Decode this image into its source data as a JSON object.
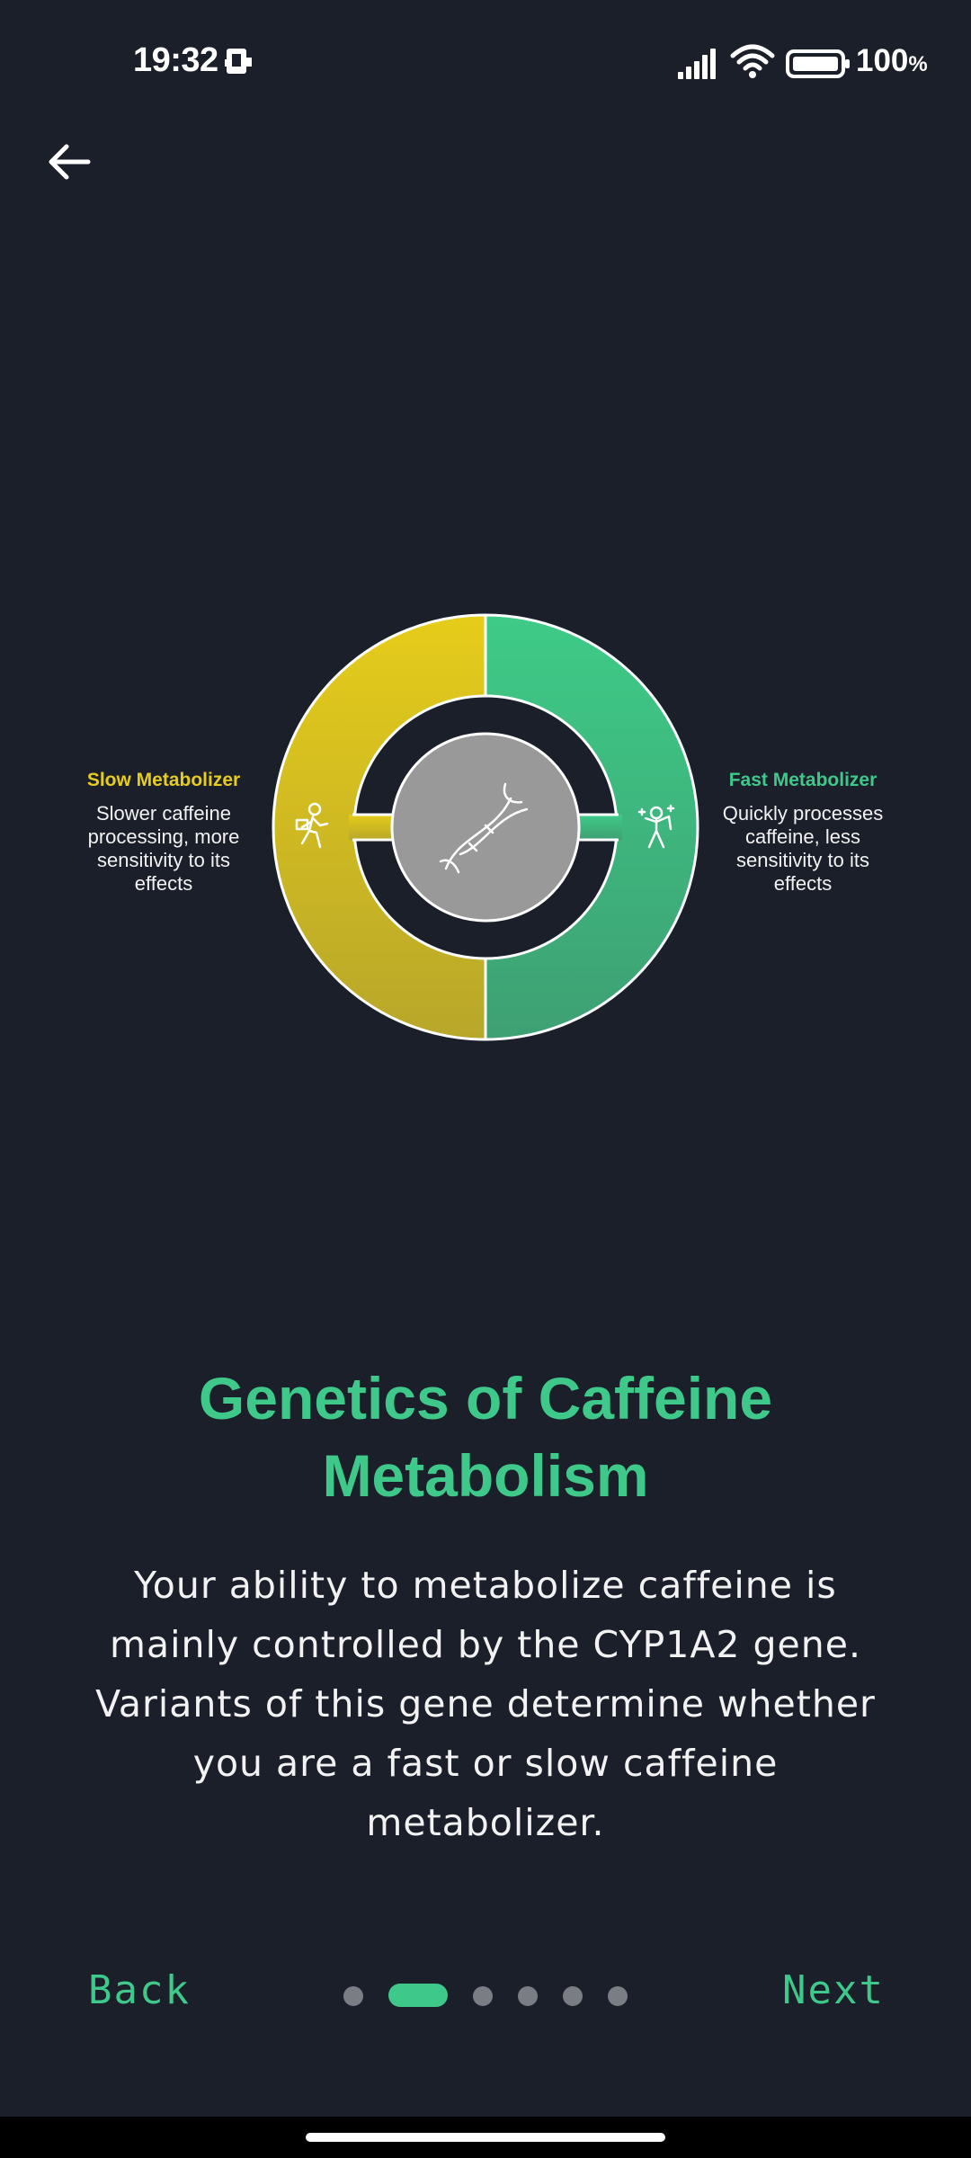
{
  "status_bar": {
    "time": "19:32",
    "battery_percent": "100",
    "battery_unit": "%",
    "icons": [
      "sim-card-icon",
      "signal-icon",
      "wifi-icon",
      "battery-icon"
    ]
  },
  "header": {
    "back_icon": "arrow-left-icon"
  },
  "diagram": {
    "left": {
      "title": "Slow Metabolizer",
      "lines": [
        "Slower caffeine",
        "processing, more",
        "sensitivity to its",
        "effects"
      ],
      "color": "#e6cc1f",
      "icon": "walking-person-icon"
    },
    "right": {
      "title": "Fast Metabolizer",
      "lines": [
        "Quickly processes",
        "caffeine, less",
        "sensitivity to its",
        "effects"
      ],
      "color": "#3ec98a",
      "icon": "energetic-person-icon"
    },
    "center_icon": "dna-icon"
  },
  "content": {
    "title_line1": "Genetics of Caffeine",
    "title_line2": "Metabolism",
    "body_lines": [
      "Your ability to metabolize caffeine is",
      "mainly controlled by the CYP1A2 gene.",
      "Variants of this gene determine whether",
      "you are a fast or slow caffeine",
      "metabolizer."
    ]
  },
  "navigation": {
    "back_label": "Back",
    "next_label": "Next",
    "page_count": 6,
    "current_page": 2
  },
  "colors": {
    "background": "#1b1f2a",
    "accent": "#3ec98a",
    "yellow": "#e6cc1f"
  }
}
